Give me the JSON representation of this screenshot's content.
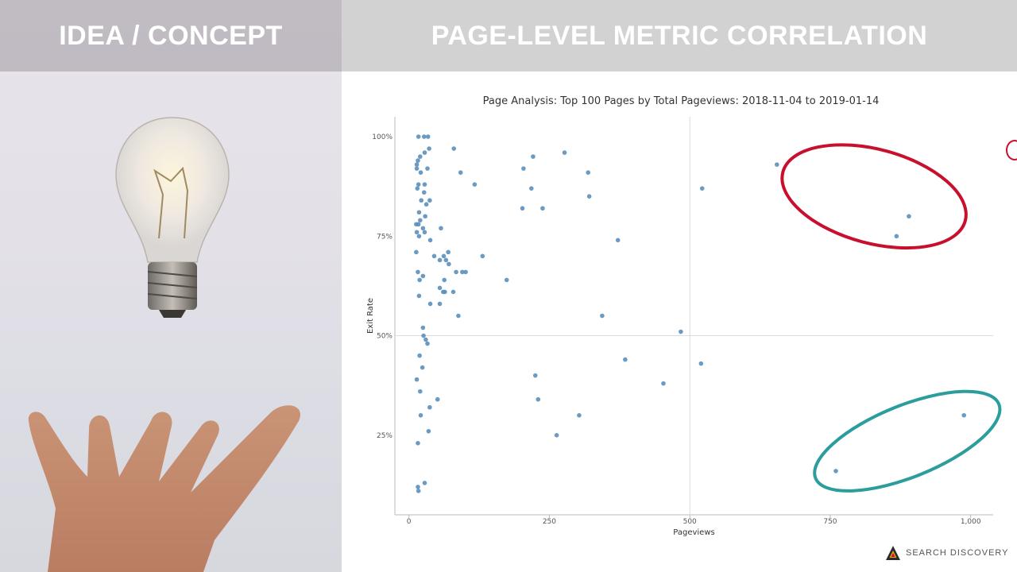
{
  "left": {
    "title": "IDEA / CONCEPT"
  },
  "right": {
    "title": "PAGE-LEVEL METRIC CORRELATION"
  },
  "footer": {
    "brand": "SEARCH DISCOVERY"
  },
  "colors": {
    "point": "#5b8fbc",
    "highlight_red": "#c8102e",
    "highlight_teal": "#2a9d9c",
    "header_bg": "#d2d2d2"
  },
  "icons": [
    "lightbulb-icon",
    "hand-icon",
    "search-discovery-logo"
  ],
  "chart_data": {
    "type": "scatter",
    "title": "Page Analysis: Top 100 Pages by Total Pageviews: 2018-11-04 to 2019-01-14",
    "xlabel": "Pageviews",
    "ylabel": "Exit Rate",
    "xlim": [
      -25,
      1040
    ],
    "ylim": [
      5,
      105
    ],
    "xticks": [
      0,
      250,
      500,
      750,
      1000
    ],
    "xtick_labels": [
      "0",
      "250",
      "500",
      "750",
      "1,000"
    ],
    "yticks": [
      25,
      50,
      75,
      100
    ],
    "ytick_labels": [
      "25%",
      "50%",
      "75%",
      "100%"
    ],
    "reference_lines": {
      "x": 500,
      "y": 50
    },
    "grid": false,
    "points": [
      [
        17,
        100
      ],
      [
        27,
        100
      ],
      [
        34,
        100
      ],
      [
        36,
        97
      ],
      [
        28,
        96
      ],
      [
        20,
        95
      ],
      [
        16,
        94
      ],
      [
        14,
        93
      ],
      [
        33,
        92
      ],
      [
        21,
        91
      ],
      [
        14,
        92
      ],
      [
        28,
        88
      ],
      [
        17,
        88
      ],
      [
        15,
        87
      ],
      [
        27,
        86
      ],
      [
        37,
        84
      ],
      [
        22,
        84
      ],
      [
        31,
        83
      ],
      [
        18,
        81
      ],
      [
        29,
        80
      ],
      [
        20,
        79
      ],
      [
        13,
        78
      ],
      [
        17,
        78
      ],
      [
        25,
        77
      ],
      [
        14,
        76
      ],
      [
        28,
        76
      ],
      [
        18,
        75
      ],
      [
        38,
        74
      ],
      [
        13,
        71
      ],
      [
        55,
        69
      ],
      [
        45,
        70
      ],
      [
        62,
        70
      ],
      [
        70,
        71
      ],
      [
        66,
        69
      ],
      [
        71,
        68
      ],
      [
        16,
        66
      ],
      [
        25,
        65
      ],
      [
        19,
        64
      ],
      [
        18,
        60
      ],
      [
        38,
        58
      ],
      [
        55,
        62
      ],
      [
        61,
        61
      ],
      [
        64,
        61
      ],
      [
        63,
        64
      ],
      [
        57,
        77
      ],
      [
        79,
        61
      ],
      [
        55,
        58
      ],
      [
        88,
        55
      ],
      [
        25,
        52
      ],
      [
        26,
        50
      ],
      [
        30,
        49
      ],
      [
        33,
        48
      ],
      [
        19,
        45
      ],
      [
        14,
        39
      ],
      [
        24,
        42
      ],
      [
        20,
        36
      ],
      [
        51,
        34
      ],
      [
        37,
        32
      ],
      [
        21,
        30
      ],
      [
        35,
        26
      ],
      [
        16,
        23
      ],
      [
        28,
        13
      ],
      [
        16,
        12
      ],
      [
        17,
        11
      ],
      [
        80,
        97
      ],
      [
        92,
        91
      ],
      [
        117,
        88
      ],
      [
        84,
        66
      ],
      [
        95,
        66
      ],
      [
        101,
        66
      ],
      [
        131,
        70
      ],
      [
        174,
        64
      ],
      [
        204,
        92
      ],
      [
        202,
        82
      ],
      [
        221,
        95
      ],
      [
        218,
        87
      ],
      [
        238,
        82
      ],
      [
        277,
        96
      ],
      [
        319,
        91
      ],
      [
        321,
        85
      ],
      [
        372,
        74
      ],
      [
        344,
        55
      ],
      [
        225,
        40
      ],
      [
        230,
        34
      ],
      [
        263,
        25
      ],
      [
        303,
        30
      ],
      [
        385,
        44
      ],
      [
        453,
        38
      ],
      [
        484,
        51
      ],
      [
        522,
        87
      ],
      [
        520,
        43
      ],
      [
        655,
        93
      ],
      [
        868,
        75
      ],
      [
        890,
        80
      ],
      [
        760,
        16
      ],
      [
        988,
        30
      ]
    ],
    "annotations": [
      {
        "shape": "ellipse",
        "color": "#c8102e",
        "center": [
          828,
          85
        ],
        "rx": 168,
        "ry": 11.8
      },
      {
        "shape": "ellipse",
        "color": "#2a9d9c",
        "center": [
          887,
          23.5
        ],
        "rx": 176,
        "ry": 9
      }
    ]
  }
}
